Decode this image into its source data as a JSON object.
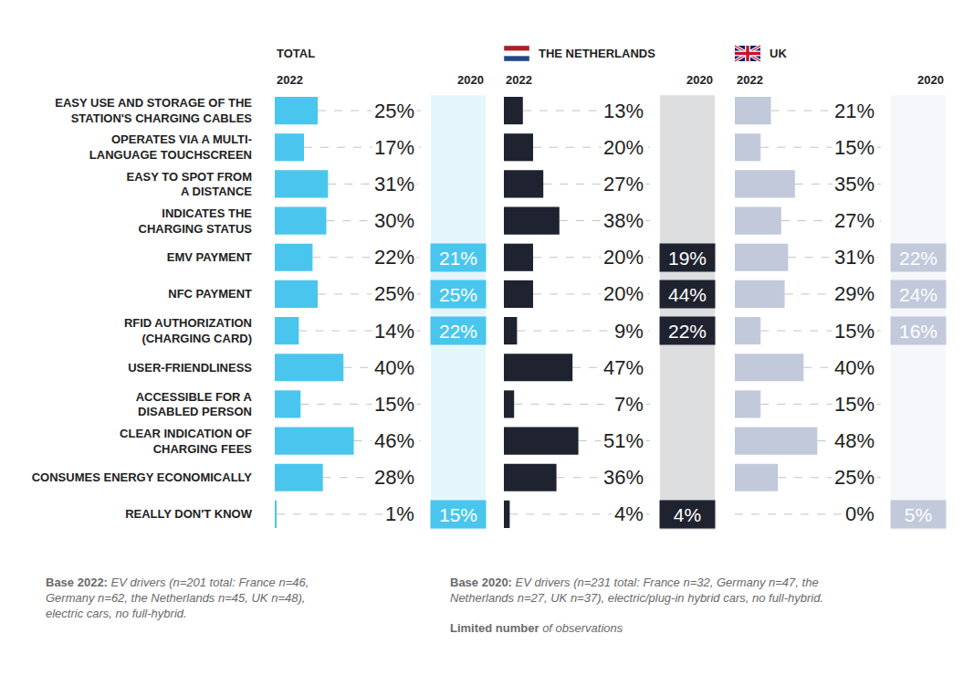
{
  "chart_data": [
    {
      "type": "bar",
      "title": "TOTAL",
      "orientation": "horizontal",
      "data_labels": true,
      "grid": false,
      "tick_labels": "y",
      "xlim": [
        0,
        85
      ],
      "categories": [
        "EASY USE AND STORAGE OF THE\nSTATION'S CHARGING CABLES",
        "OPERATES VIA A MULTI-\nLANGUAGE TOUCHSCREEN",
        "EASY TO SPOT FROM\nA DISTANCE",
        "INDICATES THE\nCHARGING STATUS",
        "EMV PAYMENT",
        "NFC PAYMENT",
        "RFID AUTHORIZATION\n(CHARGING CARD)",
        "USER-FRIENDLINESS",
        "ACCESSIBLE FOR A\nDISABLED PERSON",
        "CLEAR INDICATION OF\nCHARGING FEES",
        "CONSUMES ENERGY ECONOMICALLY",
        "REALLY DON'T KNOW"
      ],
      "series": [
        {
          "name": "2022",
          "color": "#4ac6ee",
          "values": [
            25,
            17,
            31,
            30,
            22,
            25,
            14,
            40,
            15,
            46,
            28,
            1
          ],
          "value_labels": [
            "25%",
            "17%",
            "31%",
            "30%",
            "22%",
            "25%",
            "14%",
            "40%",
            "15%",
            "46%",
            "28%",
            "1%"
          ]
        },
        {
          "name": "2020",
          "color": "#4ac6ee",
          "values": [
            null,
            null,
            null,
            null,
            21,
            25,
            22,
            null,
            null,
            null,
            null,
            15
          ],
          "value_labels": [
            null,
            null,
            null,
            null,
            "21%",
            "25%",
            "22%",
            null,
            null,
            null,
            null,
            "15%"
          ]
        }
      ]
    },
    {
      "type": "bar",
      "title": "THE NETHERLANDS",
      "orientation": "horizontal",
      "data_labels": true,
      "grid": false,
      "tick_labels": "y",
      "xlim": [
        0,
        100
      ],
      "categories": [
        "EASY USE AND STORAGE OF THE\nSTATION'S CHARGING CABLES",
        "OPERATES VIA A MULTI-\nLANGUAGE TOUCHSCREEN",
        "EASY TO SPOT FROM\nA DISTANCE",
        "INDICATES THE\nCHARGING STATUS",
        "EMV PAYMENT",
        "NFC PAYMENT",
        "RFID AUTHORIZATION\n(CHARGING CARD)",
        "USER-FRIENDLINESS",
        "ACCESSIBLE FOR A\nDISABLED PERSON",
        "CLEAR INDICATION OF\nCHARGING FEES",
        "CONSUMES ENERGY ECONOMICALLY",
        "REALLY DON'T KNOW"
      ],
      "series": [
        {
          "name": "2022",
          "color": "#1f2330",
          "values": [
            13,
            20,
            27,
            38,
            20,
            20,
            9,
            47,
            7,
            51,
            36,
            4
          ],
          "value_labels": [
            "13%",
            "20%",
            "27%",
            "38%",
            "20%",
            "20%",
            "9%",
            "47%",
            "7%",
            "51%",
            "36%",
            "4%"
          ]
        },
        {
          "name": "2020",
          "color": "#1f2330",
          "values": [
            null,
            null,
            null,
            null,
            19,
            44,
            22,
            null,
            null,
            null,
            null,
            4
          ],
          "value_labels": [
            null,
            null,
            null,
            null,
            "19%",
            "44%",
            "22%",
            null,
            null,
            null,
            null,
            "4%"
          ]
        }
      ]
    },
    {
      "type": "bar",
      "title": "UK",
      "orientation": "horizontal",
      "data_labels": true,
      "grid": false,
      "tick_labels": "y",
      "xlim": [
        0,
        85
      ],
      "categories": [
        "EASY USE AND STORAGE OF THE\nSTATION'S CHARGING CABLES",
        "OPERATES VIA A MULTI-\nLANGUAGE TOUCHSCREEN",
        "EASY TO SPOT FROM\nA DISTANCE",
        "INDICATES THE\nCHARGING STATUS",
        "EMV PAYMENT",
        "NFC PAYMENT",
        "RFID AUTHORIZATION\n(CHARGING CARD)",
        "USER-FRIENDLINESS",
        "ACCESSIBLE FOR A\nDISABLED PERSON",
        "CLEAR INDICATION OF\nCHARGING FEES",
        "CONSUMES ENERGY ECONOMICALLY",
        "REALLY DON'T KNOW"
      ],
      "series": [
        {
          "name": "2022",
          "color": "#c1c9db",
          "values": [
            21,
            15,
            35,
            27,
            31,
            29,
            15,
            40,
            15,
            48,
            25,
            0
          ],
          "value_labels": [
            "21%",
            "15%",
            "35%",
            "27%",
            "31%",
            "29%",
            "15%",
            "40%",
            "15%",
            "48%",
            "25%",
            "0%"
          ]
        },
        {
          "name": "2020",
          "color": "#c1c9db",
          "values": [
            null,
            null,
            null,
            null,
            22,
            24,
            16,
            null,
            null,
            null,
            null,
            5
          ],
          "value_labels": [
            null,
            null,
            null,
            null,
            "22%",
            "24%",
            "16%",
            null,
            null,
            null,
            null,
            "5%"
          ]
        }
      ]
    }
  ],
  "notes": [
    {
      "label": "Base 2022:",
      "text": "EV drivers (n=201 total: France n=46, Germany n=62, the Netherlands n=45, UK n=48), electric cars, no full-hybrid."
    },
    {
      "label": "Base 2020:",
      "text": "EV drivers (n=231 total: France n=32, Germany n=47, the Netherlands n=27, UK n=37), electric/plug-in hybrid cars, no full-hybrid."
    },
    {
      "label": "Limited number",
      "text": "of observations"
    }
  ]
}
